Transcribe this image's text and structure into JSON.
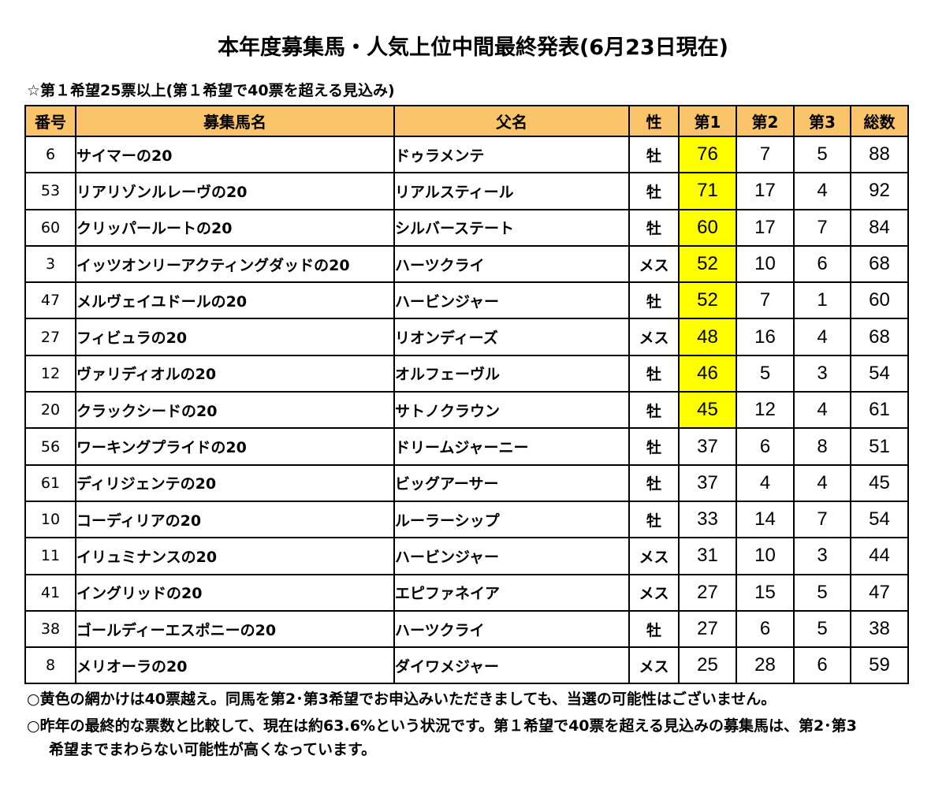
{
  "title": "本年度募集馬・人気上位中間最終発表(6月23日現在)",
  "subtitle": "☆第１希望25票以上(第１希望で40票を超える見込み)",
  "table": {
    "headers": [
      "番号",
      "募集馬名",
      "父名",
      "性",
      "第1",
      "第2",
      "第3",
      "総数"
    ],
    "highlight_color": "#ffff00",
    "header_color": "#fbc46a",
    "rows": [
      {
        "no": "6",
        "name": "サイマーの20",
        "sire": "ドゥラメンテ",
        "sex": "牡",
        "v1": "76",
        "v2": "7",
        "v3": "5",
        "total": "88",
        "hl": true
      },
      {
        "no": "53",
        "name": "リアリゾンルレーヴの20",
        "sire": "リアルスティール",
        "sex": "牡",
        "v1": "71",
        "v2": "17",
        "v3": "4",
        "total": "92",
        "hl": true
      },
      {
        "no": "60",
        "name": "クリッパールートの20",
        "sire": "シルバーステート",
        "sex": "牡",
        "v1": "60",
        "v2": "17",
        "v3": "7",
        "total": "84",
        "hl": true
      },
      {
        "no": "3",
        "name": "イッツオンリーアクティングダッドの20",
        "sire": "ハーツクライ",
        "sex": "メス",
        "v1": "52",
        "v2": "10",
        "v3": "6",
        "total": "68",
        "hl": true
      },
      {
        "no": "47",
        "name": "メルヴェイユドールの20",
        "sire": "ハービンジャー",
        "sex": "牡",
        "v1": "52",
        "v2": "7",
        "v3": "1",
        "total": "60",
        "hl": true
      },
      {
        "no": "27",
        "name": "フィビュラの20",
        "sire": "リオンディーズ",
        "sex": "メス",
        "v1": "48",
        "v2": "16",
        "v3": "4",
        "total": "68",
        "hl": true
      },
      {
        "no": "12",
        "name": "ヴァリディオルの20",
        "sire": "オルフェーヴル",
        "sex": "牡",
        "v1": "46",
        "v2": "5",
        "v3": "3",
        "total": "54",
        "hl": true
      },
      {
        "no": "20",
        "name": "クラックシードの20",
        "sire": "サトノクラウン",
        "sex": "牡",
        "v1": "45",
        "v2": "12",
        "v3": "4",
        "total": "61",
        "hl": true
      },
      {
        "no": "56",
        "name": "ワーキングプライドの20",
        "sire": "ドリームジャーニー",
        "sex": "牡",
        "v1": "37",
        "v2": "6",
        "v3": "8",
        "total": "51",
        "hl": false
      },
      {
        "no": "61",
        "name": "ディリジェンテの20",
        "sire": "ビッグアーサー",
        "sex": "牡",
        "v1": "37",
        "v2": "4",
        "v3": "4",
        "total": "45",
        "hl": false
      },
      {
        "no": "10",
        "name": "コーディリアの20",
        "sire": "ルーラーシップ",
        "sex": "牡",
        "v1": "33",
        "v2": "14",
        "v3": "7",
        "total": "54",
        "hl": false
      },
      {
        "no": "11",
        "name": "イリュミナンスの20",
        "sire": "ハービンジャー",
        "sex": "メス",
        "v1": "31",
        "v2": "10",
        "v3": "3",
        "total": "44",
        "hl": false
      },
      {
        "no": "41",
        "name": "イングリッドの20",
        "sire": "エピファネイア",
        "sex": "メス",
        "v1": "27",
        "v2": "15",
        "v3": "5",
        "total": "47",
        "hl": false
      },
      {
        "no": "38",
        "name": "ゴールディーエスポニーの20",
        "sire": "ハーツクライ",
        "sex": "牡",
        "v1": "27",
        "v2": "6",
        "v3": "5",
        "total": "38",
        "hl": false
      },
      {
        "no": "8",
        "name": "メリオーラの20",
        "sire": "ダイワメジャー",
        "sex": "メス",
        "v1": "25",
        "v2": "28",
        "v3": "6",
        "total": "59",
        "hl": false
      }
    ]
  },
  "notes": [
    "○黄色の網かけは40票越え。同馬を第2･第3希望でお申込みいただきましても、当選の可能性はございません。",
    "○昨年の最終的な票数と比較して、現在は約63.6%という状況です。第１希望で40票を超える見込みの募集馬は、第2･第3希望までまわらない可能性が高くなっています。"
  ]
}
